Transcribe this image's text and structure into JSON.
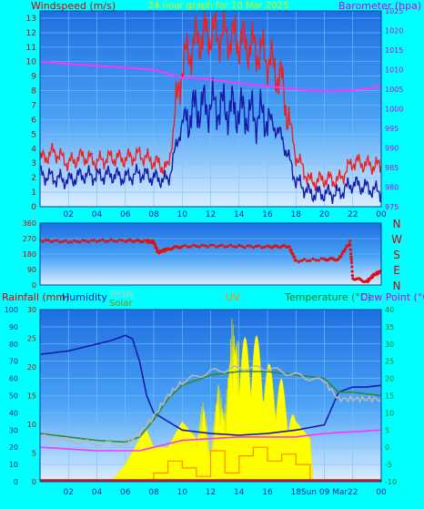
{
  "chart_data": [
    {
      "type": "line",
      "title": "24 hour graph for 10 Mar 2025",
      "left_label": "Windspeed (m/s)",
      "right_label": "Barometer (hpa)",
      "x_ticks": [
        "02",
        "04",
        "06",
        "08",
        "10",
        "12",
        "14",
        "16",
        "18",
        "20",
        "22",
        "00"
      ],
      "y_left_ticks": [
        "0",
        "1",
        "2",
        "3",
        "4",
        "5",
        "6",
        "7",
        "8",
        "9",
        "10",
        "11",
        "12",
        "13"
      ],
      "y_right_ticks": [
        "975",
        "980",
        "985",
        "990",
        "995",
        "1000",
        "1005",
        "1010",
        "1015",
        "1020",
        "1025"
      ],
      "ylim_left": [
        0,
        13.5
      ],
      "ylim_right": [
        975,
        1025
      ],
      "series": [
        {
          "color": "#ee2020",
          "hours": [
            0,
            1,
            2,
            3,
            4,
            5,
            6,
            7,
            8,
            9,
            10,
            11,
            12,
            13,
            14,
            15,
            16,
            17,
            18,
            19,
            20,
            21,
            22,
            23,
            24
          ],
          "values": [
            3.2,
            3.8,
            3.0,
            3.5,
            3.1,
            3.4,
            3.3,
            3.6,
            3.1,
            2.6,
            9.8,
            11.5,
            12.0,
            11.8,
            11.5,
            11.0,
            10.3,
            8.6,
            3.5,
            1.7,
            1.9,
            1.8,
            3.1,
            2.9,
            2.8
          ]
        },
        {
          "color": "#1a1aa8",
          "hours": [
            0,
            1,
            2,
            3,
            4,
            5,
            6,
            7,
            8,
            9,
            10,
            11,
            12,
            13,
            14,
            15,
            16,
            17,
            18,
            19,
            20,
            21,
            22,
            23,
            24
          ],
          "values": [
            2.2,
            2.0,
            1.8,
            2.2,
            2.1,
            2.2,
            2.0,
            2.3,
            2.0,
            1.8,
            5.8,
            6.8,
            7.0,
            6.8,
            6.6,
            6.3,
            6.2,
            4.8,
            1.8,
            0.9,
            0.9,
            0.9,
            1.6,
            1.3,
            1.0
          ]
        },
        {
          "color": "#ff33ff",
          "axis": "right",
          "hours": [
            0,
            2,
            4,
            6,
            8,
            10,
            12,
            14,
            16,
            18,
            20,
            22,
            24
          ],
          "values": [
            1012,
            1011.5,
            1011,
            1010.5,
            1010,
            1008,
            1007.5,
            1006.5,
            1005.8,
            1005,
            1004.5,
            1004.8,
            1005.6
          ]
        }
      ]
    },
    {
      "type": "scatter",
      "y_ticks": [
        "0",
        "90",
        "180",
        "270",
        "360"
      ],
      "right_compass": [
        "N",
        "W",
        "S",
        "E",
        "N"
      ],
      "ylim": [
        0,
        360
      ],
      "series": [
        {
          "color": "#e01010",
          "hours": [
            0,
            2,
            4,
            6,
            7.5,
            8,
            8.3,
            9,
            10,
            12,
            14,
            16,
            17.5,
            18,
            20,
            21,
            21.8,
            22,
            23,
            23.5,
            24
          ],
          "values": [
            260,
            252,
            258,
            258,
            255,
            250,
            190,
            210,
            225,
            228,
            225,
            222,
            225,
            140,
            150,
            150,
            250,
            40,
            20,
            60,
            80
          ]
        }
      ]
    },
    {
      "type": "line",
      "labels": {
        "rainfall": "Rainfall (mm)",
        "humidity": "Humidity",
        "thsw": "THSW",
        "solar": "Solar",
        "uv": "UV",
        "temperature": "Temperature (°C)",
        "dewpoint": "Dew Point (°C)"
      },
      "x_ticks": [
        "02",
        "04",
        "06",
        "08",
        "10",
        "12",
        "14",
        "16",
        "18",
        "Sun 09 Mar",
        "22",
        "00"
      ],
      "y_left_outer_ticks": [
        "0",
        "10",
        "20",
        "30",
        "40",
        "50",
        "60",
        "70",
        "80",
        "90",
        "100"
      ],
      "y_left_inner_ticks": [
        "0",
        "5",
        "10",
        "15",
        "20",
        "25",
        "30"
      ],
      "y_right_ticks": [
        "-10",
        "-5",
        "0",
        "5",
        "10",
        "15",
        "20",
        "25",
        "30",
        "35",
        "40"
      ],
      "ylim_humidity": [
        0,
        100
      ],
      "ylim_temp": [
        -10,
        40
      ],
      "series": [
        {
          "name": "Humidity",
          "color": "#1a1aa8",
          "axis": "humidity",
          "hours": [
            0,
            1,
            2,
            3,
            4,
            5,
            6,
            6.5,
            7,
            7.5,
            8,
            9,
            10,
            12,
            14,
            16,
            18,
            20,
            21,
            22,
            23,
            24
          ],
          "values": [
            74,
            75,
            76,
            78,
            80,
            82,
            85,
            83,
            70,
            50,
            40,
            35,
            30,
            28,
            27,
            28,
            30,
            33,
            52,
            55,
            55,
            56
          ]
        },
        {
          "name": "Temperature",
          "color": "#2e8b2e",
          "axis": "temp",
          "hours": [
            0,
            2,
            4,
            6,
            7,
            8,
            9,
            10,
            12,
            14,
            16,
            18,
            20,
            21,
            22,
            23,
            24
          ],
          "values": [
            4,
            3,
            2,
            1.5,
            3,
            8,
            14,
            18,
            21,
            22,
            22,
            21,
            20,
            16,
            16,
            15.5,
            15
          ]
        },
        {
          "name": "THSW",
          "color": "#b8b8b8",
          "axis": "temp",
          "hours": [
            0,
            2,
            4,
            6,
            7,
            8,
            9,
            10,
            12,
            14,
            16,
            18,
            20,
            21,
            22,
            23,
            24
          ],
          "values": [
            3,
            2,
            1,
            1,
            4,
            9,
            15,
            19,
            22,
            23,
            23,
            21,
            19,
            14,
            14,
            14,
            14
          ]
        },
        {
          "name": "Dew Point",
          "color": "#ff33ff",
          "axis": "temp",
          "hours": [
            0,
            2,
            4,
            6,
            7,
            8,
            9,
            10,
            12,
            14,
            16,
            18,
            20,
            22,
            24
          ],
          "values": [
            0,
            -0.5,
            -1,
            -1,
            -1,
            0,
            1,
            2,
            2.5,
            3,
            3,
            3,
            4,
            4.5,
            5
          ]
        },
        {
          "name": "UV",
          "color": "#ff8c00",
          "axis": "humidity",
          "hours": [
            0,
            7,
            8,
            9,
            10,
            11,
            12,
            13,
            14,
            15,
            16,
            17,
            18,
            19,
            24
          ],
          "values": [
            0,
            0,
            5,
            12,
            8,
            3,
            18,
            5,
            15,
            20,
            12,
            16,
            10,
            0,
            0
          ]
        }
      ],
      "solar_fill": {
        "color": "#ffff00",
        "hours": [
          5,
          6,
          7,
          7.5,
          8,
          9,
          10,
          11,
          11.5,
          12,
          12.5,
          13,
          13.5,
          14,
          15,
          16,
          17,
          18,
          19,
          19.2
        ],
        "values": [
          0,
          10,
          25,
          30,
          20,
          20,
          35,
          25,
          50,
          15,
          60,
          40,
          95,
          80,
          90,
          70,
          60,
          35,
          25,
          0
        ]
      }
    }
  ]
}
